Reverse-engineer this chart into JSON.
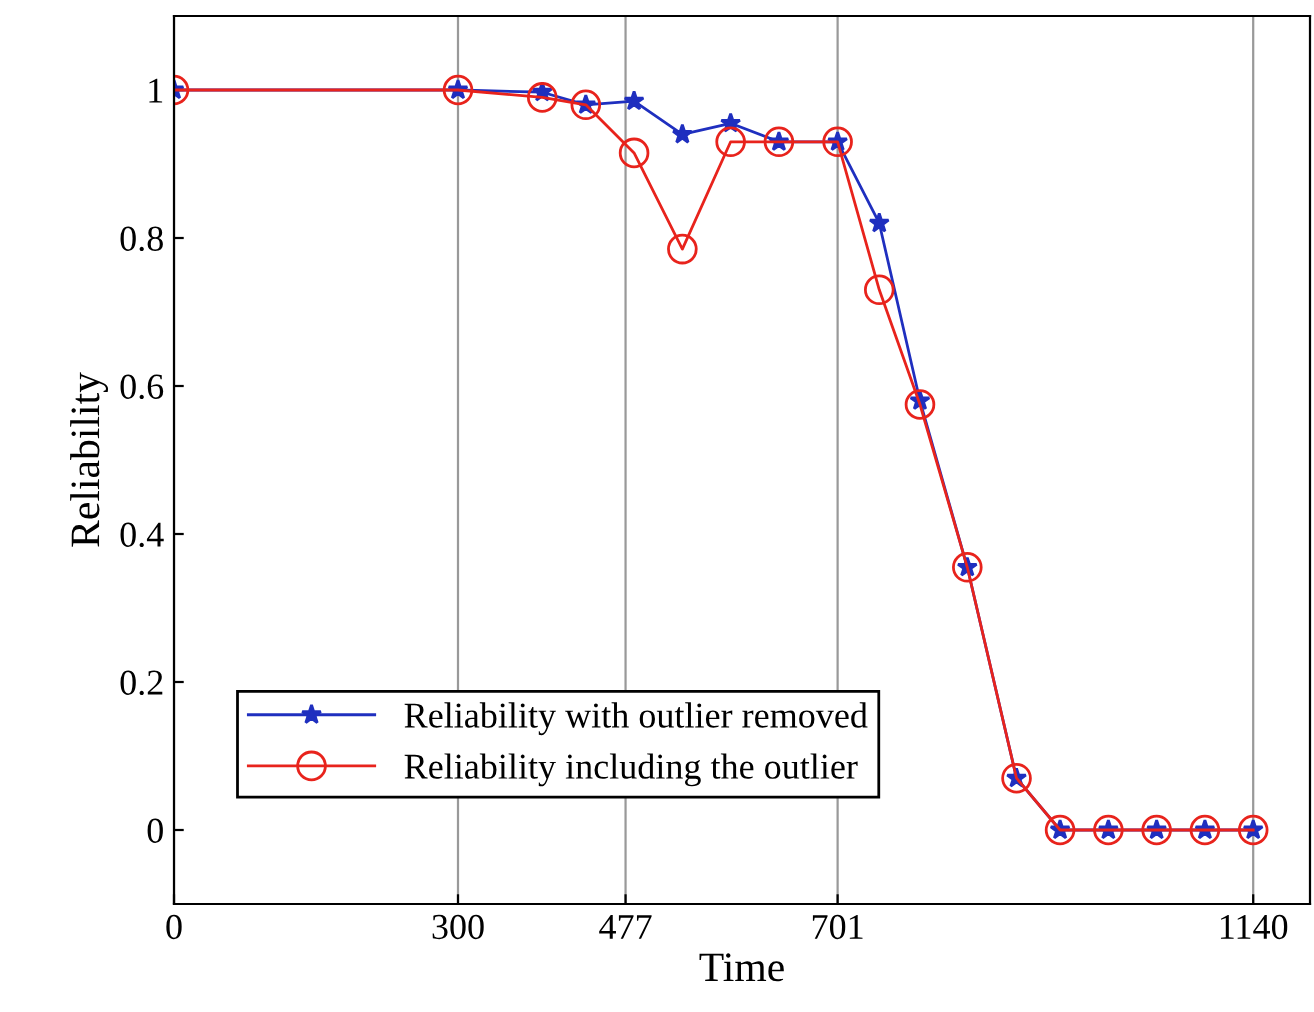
{
  "chart_data": {
    "type": "line",
    "xlabel": "Time",
    "ylabel": "Reliability",
    "x": [
      0,
      300,
      389,
      435,
      486,
      537,
      588,
      639,
      701,
      745,
      788,
      838,
      890,
      936,
      987,
      1038,
      1089,
      1140
    ],
    "series": [
      {
        "name": "Reliability with outlier removed",
        "color": "#1f2fbf",
        "marker": "star",
        "values": [
          1,
          1,
          0.997,
          0.98,
          0.985,
          0.94,
          0.955,
          0.93,
          0.93,
          0.82,
          0.58,
          0.355,
          0.07,
          0,
          0,
          0,
          0,
          0
        ]
      },
      {
        "name": "Reliability including the outlier",
        "color": "#e8231c",
        "marker": "circle",
        "values": [
          1,
          1,
          0.99,
          0.98,
          0.915,
          0.785,
          0.93,
          0.93,
          0.93,
          0.73,
          0.575,
          0.355,
          0.07,
          0,
          0,
          0,
          0,
          0
        ]
      }
    ],
    "xlim": [
      0,
      1200
    ],
    "xticks": [
      0,
      300,
      477,
      701,
      1140
    ],
    "ylim": [
      -0.1,
      1.1
    ],
    "yticks": [
      0,
      0.2,
      0.4,
      0.6,
      0.8,
      1
    ],
    "grid": "x",
    "legend": "bottom left",
    "line_style": "solid"
  }
}
